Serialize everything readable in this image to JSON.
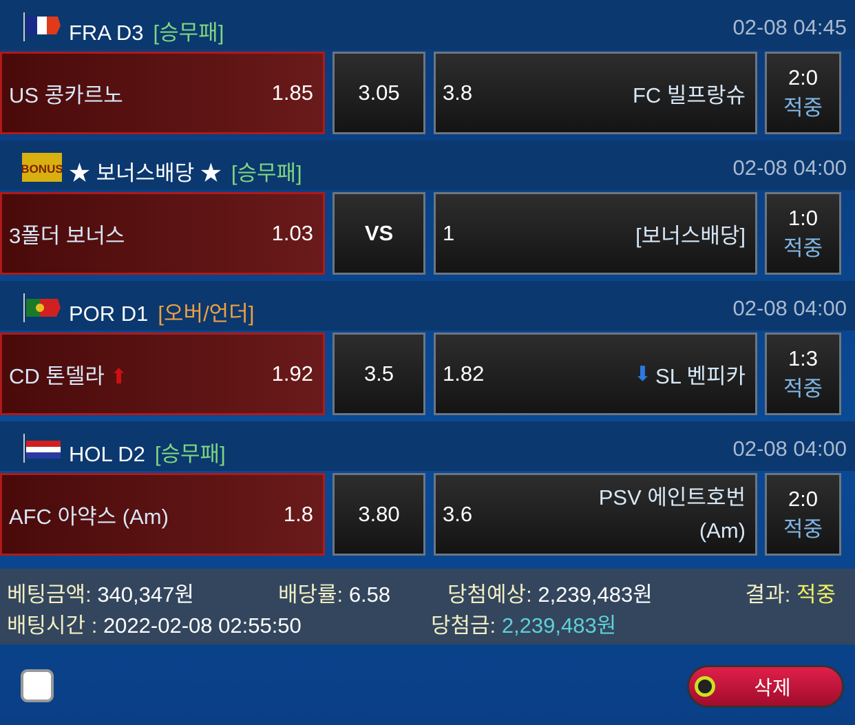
{
  "matches": [
    {
      "flag": "france-flag",
      "league": "FRA D3",
      "market": "[승무패]",
      "market_color": "#7fd67f",
      "time": "02-08 04:45",
      "home": "US 콩카르노",
      "home_odds": "1.85",
      "draw": "3.05",
      "away_odds": "3.8",
      "away": "FC 빌프랑슈",
      "score": "2:0",
      "result": "적중"
    },
    {
      "flag": "bonus-badge",
      "league": "★ 보너스배당 ★",
      "market": "[승무패]",
      "market_color": "#7fd67f",
      "time": "02-08 04:00",
      "home": "3폴더 보너스",
      "home_odds": "1.03",
      "draw": "VS",
      "away_odds": "1",
      "away": "[보너스배당]",
      "score": "1:0",
      "result": "적중"
    },
    {
      "flag": "portugal-flag",
      "league": "POR D1",
      "market": "[오버/언더]",
      "market_color": "#f0a040",
      "time": "02-08 04:00",
      "home": "CD 톤델라",
      "home_odds": "1.92",
      "draw": "3.5",
      "away_odds": "1.82",
      "away": "SL 벤피카",
      "score": "1:3",
      "result": "적중"
    },
    {
      "flag": "netherlands-flag",
      "league": "HOL D2",
      "market": "[승무패]",
      "market_color": "#7fd67f",
      "time": "02-08 04:00",
      "home": "AFC 아약스 (Am)",
      "home_odds": "1.8",
      "draw": "3.80",
      "away_odds": "3.6",
      "away": "PSV 에인트호번 (Am)",
      "score": "2:0",
      "result": "적중"
    }
  ],
  "summary": {
    "bet_amount_label": "베팅금액:",
    "bet_amount": "340,347원",
    "odds_label": "배당률:",
    "odds": "6.58",
    "expected_label": "당첨예상:",
    "expected": "2,239,483원",
    "result_label": "결과:",
    "result": "적중",
    "bet_time_label": "배팅시간 :",
    "bet_time": "2022-02-08 02:55:50",
    "winnings_label": "당첨금:",
    "winnings": "2,239,483원"
  },
  "delete_label": "삭제",
  "bonus_text": "BONUS"
}
